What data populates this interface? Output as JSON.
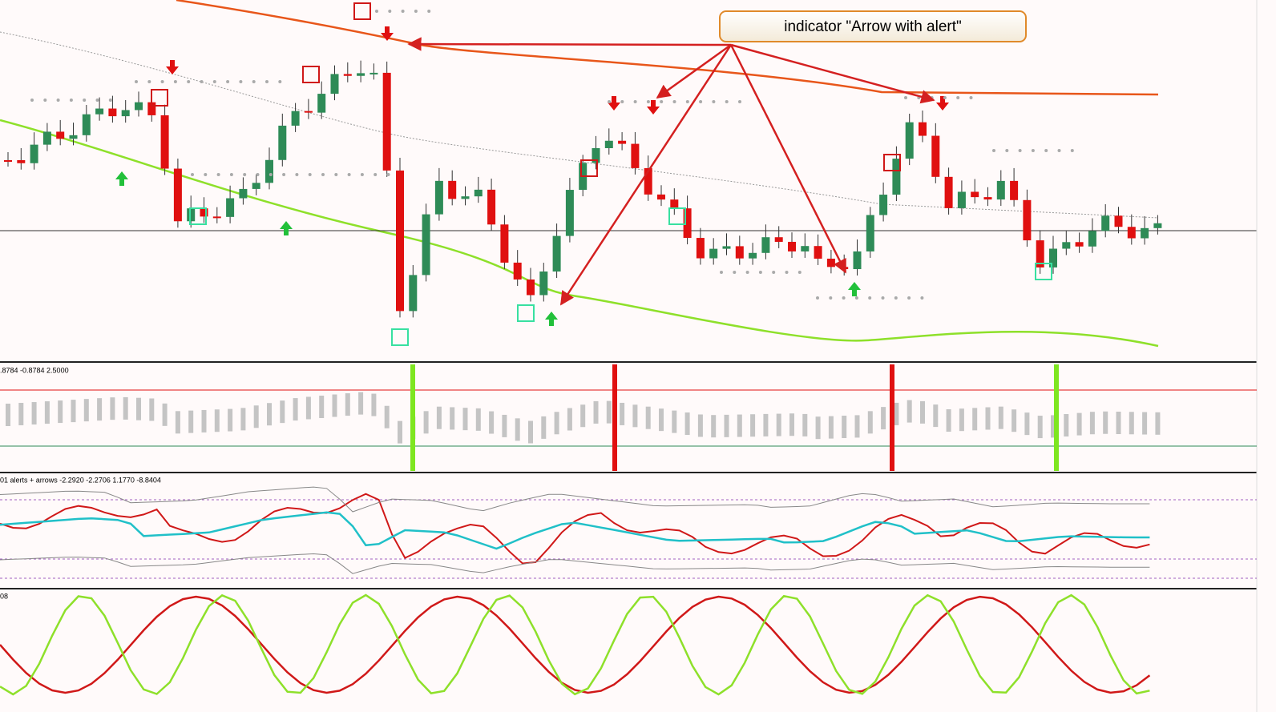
{
  "callout": {
    "text": "indicator \"Arrow with alert\""
  },
  "panels": [
    {
      "label": ".8784 -0.8784 2.5000"
    },
    {
      "label": "01 alerts + arrows -2.2920 -2.2706 1.1770 -8.8404"
    },
    {
      "label": "08"
    }
  ]
}
